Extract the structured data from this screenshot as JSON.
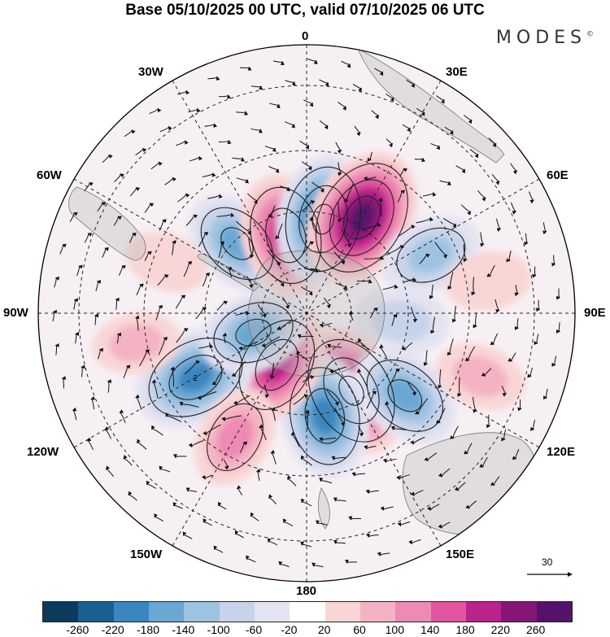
{
  "title": "Base 05/10/2025 00 UTC, valid 07/10/2025 06 UTC",
  "brand": "MODES",
  "brand_mark": "©",
  "longitude_labels": {
    "top": "0",
    "top_right": "30E",
    "right_upper": "60E",
    "right": "90E",
    "right_lower": "120E",
    "bottom_right": "150E",
    "bottom": "180",
    "bottom_left": "150W",
    "left_lower": "120W",
    "left": "90W",
    "left_upper": "60W",
    "top_left": "30W"
  },
  "vector_scale_label": "30",
  "colorbar": {
    "colors": [
      "#0d3b5e",
      "#1c5f93",
      "#3a86bf",
      "#6aa7d3",
      "#9ec2e2",
      "#c7d3ea",
      "#e4e3f1",
      "#ffffff",
      "#f9d6d6",
      "#f4b3c3",
      "#ee8ab3",
      "#e0559e",
      "#b9238a",
      "#871777",
      "#55126a"
    ],
    "tick_labels": [
      "-260",
      "-220",
      "-180",
      "-140",
      "-100",
      "-60",
      "-20",
      "20",
      "60",
      "100",
      "140",
      "180",
      "220",
      "260"
    ]
  },
  "anomaly_centers": [
    {
      "lon": -45,
      "colat": 33,
      "value": -150
    },
    {
      "lon": -15,
      "colat": 27,
      "value": 200
    },
    {
      "lon": 10,
      "colat": 32,
      "value": -220
    },
    {
      "lon": 30,
      "colat": 37,
      "value": 260
    },
    {
      "lon": 65,
      "colat": 46,
      "value": -120
    },
    {
      "lon": 95,
      "colat": 32,
      "value": -90
    },
    {
      "lon": 150,
      "colat": 30,
      "value": 240
    },
    {
      "lon": 170,
      "colat": 35,
      "value": -200
    },
    {
      "lon": 130,
      "colat": 43,
      "value": -160
    },
    {
      "lon": -150,
      "colat": 20,
      "value": 190
    },
    {
      "lon": -120,
      "colat": 43,
      "value": -210
    },
    {
      "lon": -110,
      "colat": 19,
      "value": -140
    },
    {
      "lon": -150,
      "colat": 48,
      "value": 120
    },
    {
      "lon": -100,
      "colat": 58,
      "value": 60
    },
    {
      "lon": 110,
      "colat": 62,
      "value": 70
    },
    {
      "lon": -70,
      "colat": 50,
      "value": 40
    },
    {
      "lon": 80,
      "colat": 62,
      "value": 50
    }
  ],
  "contour_labels": [
    {
      "lon": -120,
      "colat": 43,
      "text": "2"
    }
  ]
}
